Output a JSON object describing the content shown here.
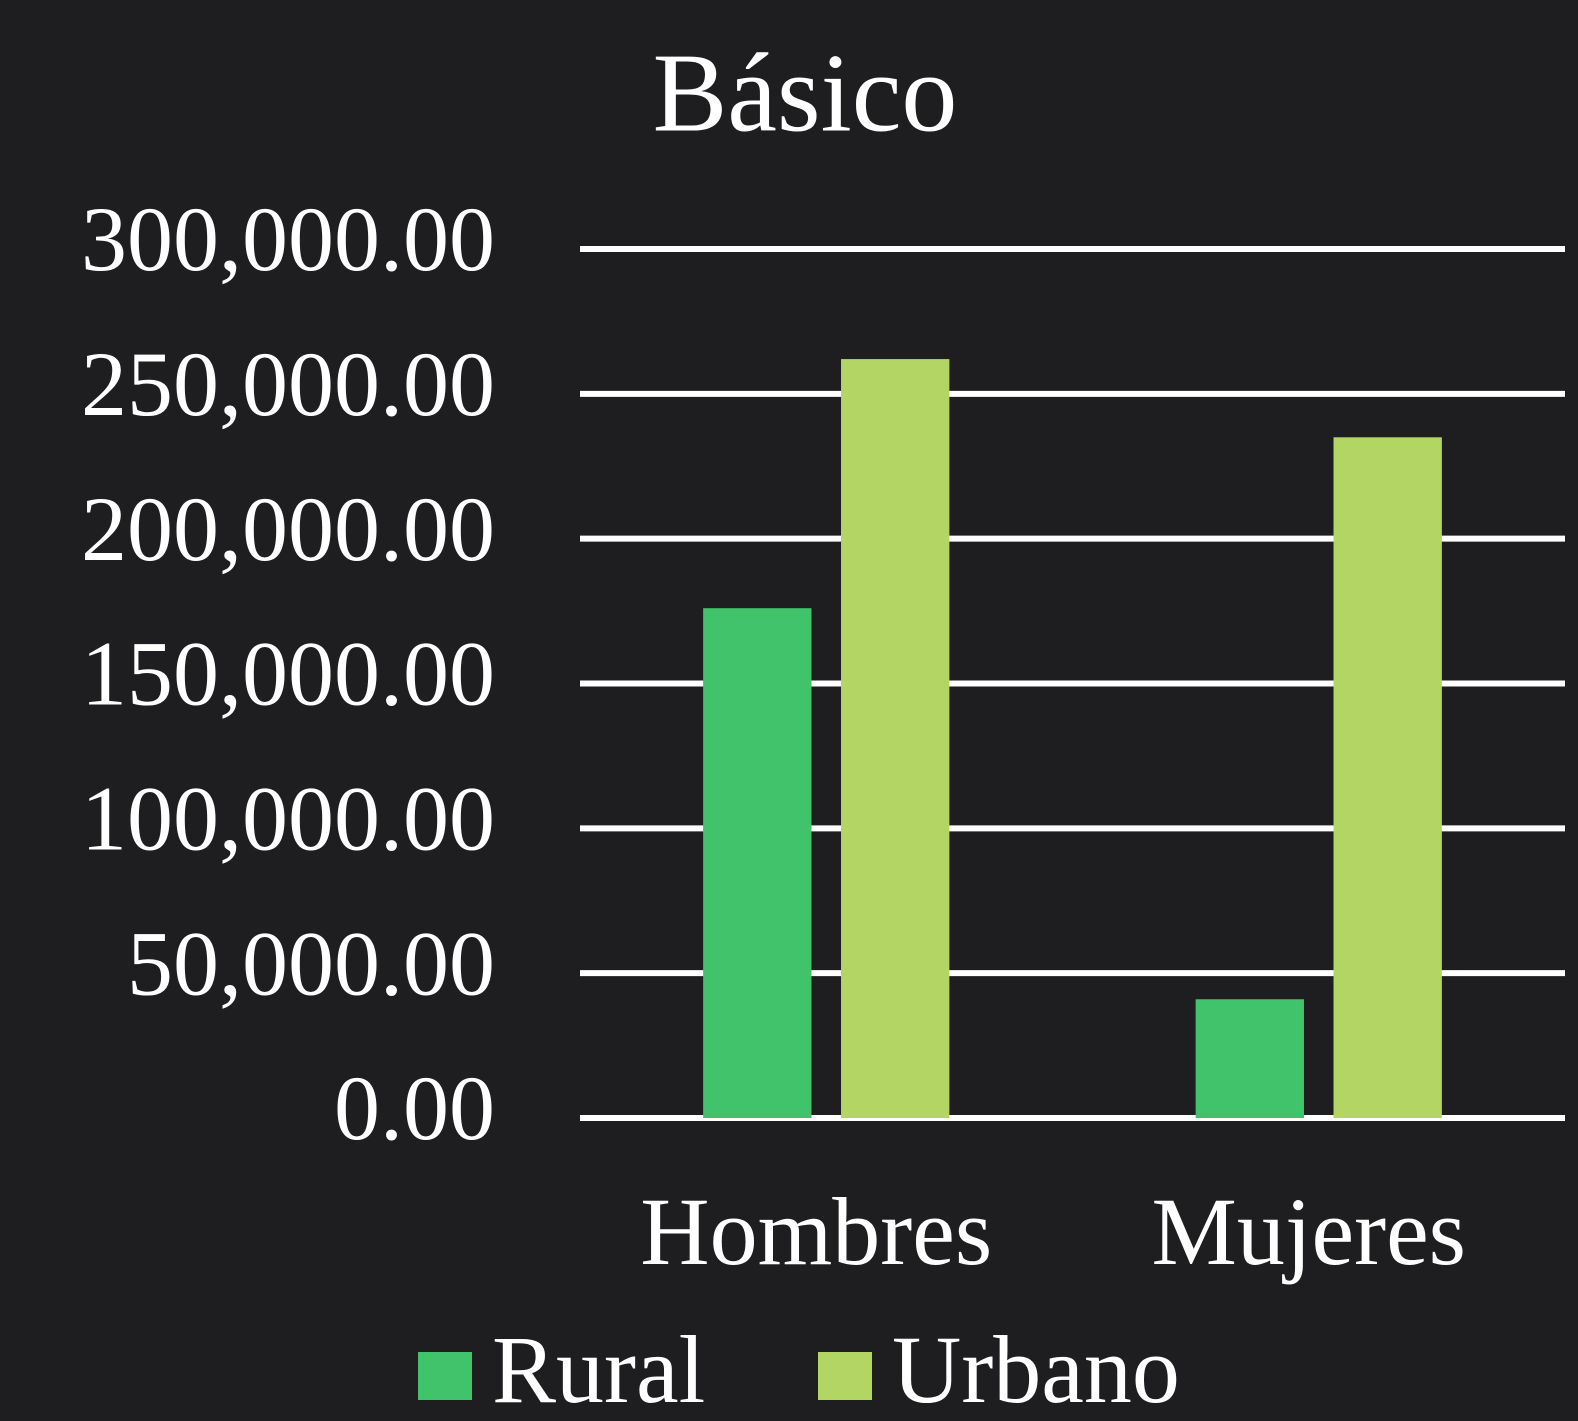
{
  "chart_data": {
    "type": "bar",
    "title": "Básico",
    "categories": [
      "Hombres",
      "Mujeres"
    ],
    "series": [
      {
        "name": "Rural",
        "color": "#41c36b",
        "values": [
          176000,
          41000
        ]
      },
      {
        "name": "Urbano",
        "color": "#b2d563",
        "values": [
          262000,
          235000
        ]
      }
    ],
    "ylim": [
      0,
      300000
    ],
    "yticks": [
      {
        "value": 0,
        "label": "0.00"
      },
      {
        "value": 50000,
        "label": "50,000.00"
      },
      {
        "value": 100000,
        "label": "100,000.00"
      },
      {
        "value": 150000,
        "label": "150,000.00"
      },
      {
        "value": 200000,
        "label": "200,000.00"
      },
      {
        "value": 250000,
        "label": "250,000.00"
      },
      {
        "value": 300000,
        "label": "300,000.00"
      }
    ],
    "grid": true,
    "legend": "bottom"
  }
}
